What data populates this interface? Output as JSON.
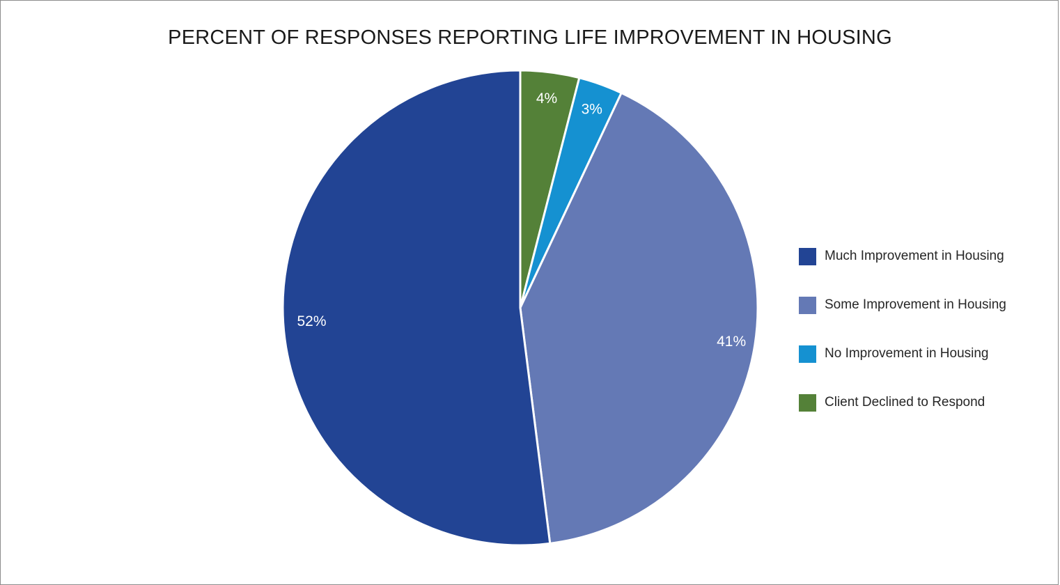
{
  "chart_data": {
    "type": "pie",
    "title": "PERCENT OF RESPONSES REPORTING LIFE IMPROVEMENT IN HOUSING",
    "categories": [
      "Much Improvement in Housing",
      "Some Improvement in Housing",
      "No Improvement in Housing",
      "Client Declined to Respond"
    ],
    "values": [
      52,
      41,
      3,
      4
    ],
    "value_labels": [
      "52%",
      "41%",
      "3%",
      "4%"
    ],
    "colors": [
      "#224494",
      "#6479b5",
      "#1591d1",
      "#548138"
    ],
    "legend_placement": "right",
    "start_angle": "12 o'clock, clockwise from last category"
  }
}
